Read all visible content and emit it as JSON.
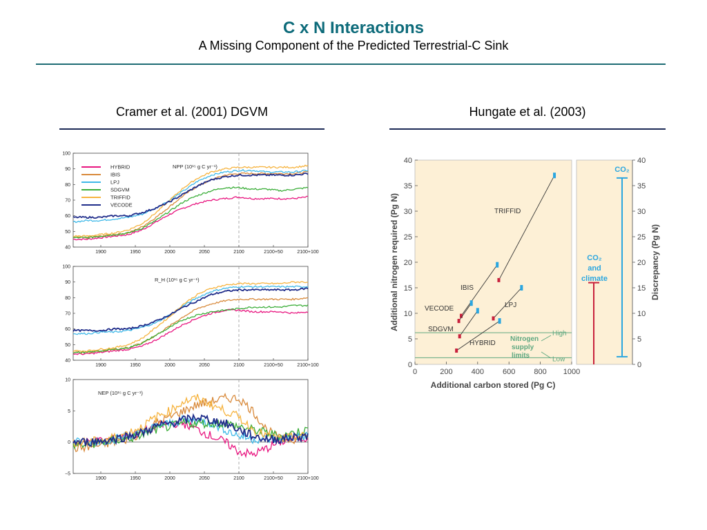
{
  "slide": {
    "title": "C x N Interactions",
    "subtitle": "A Missing Component of the Predicted Terrestrial-C Sink"
  },
  "left": {
    "heading": "Cramer et al. (2001) DGVM"
  },
  "right": {
    "heading": "Hungate et al. (2003)"
  },
  "colors": {
    "HYBRID": "#e8147f",
    "IBIS": "#d8893a",
    "LPJ": "#3db8e8",
    "SDGVM": "#3aad38",
    "TRIFFID": "#f6b33e",
    "VECODE": "#1f2c8a",
    "req_red": "#c8203c",
    "req_blue": "#2aa6e0",
    "nsupply": "#5fa881",
    "panel_bg": "#fdf0d6"
  },
  "chart_data": [
    {
      "type": "line",
      "title": "NPP (10¹⁵ g C yr⁻¹)",
      "ylim": [
        40,
        100
      ],
      "yticks": [
        "40",
        "50",
        "60",
        "70",
        "80",
        "90",
        "100"
      ],
      "xticks": [
        "1900",
        "1950",
        "2000",
        "2050",
        "2100",
        "2100+50",
        "2100+100"
      ],
      "x": [
        1860,
        1880,
        1900,
        1920,
        1940,
        1960,
        1980,
        2000,
        2020,
        2040,
        2060,
        2080,
        2100,
        2120,
        2140,
        2160,
        2180,
        2200
      ],
      "legend_position": "top-left",
      "series": [
        {
          "name": "HYBRID",
          "values": [
            45,
            45,
            46,
            47,
            48,
            51,
            56,
            61,
            65,
            68,
            70,
            71,
            72,
            71,
            71,
            71,
            71,
            72
          ]
        },
        {
          "name": "IBIS",
          "values": [
            46,
            46,
            47,
            48,
            49,
            53,
            59,
            66,
            73,
            79,
            83,
            86,
            87,
            87,
            87,
            87,
            87,
            88
          ]
        },
        {
          "name": "LPJ",
          "values": [
            56,
            57,
            57,
            58,
            59,
            61,
            65,
            70,
            76,
            82,
            86,
            88,
            89,
            89,
            88,
            88,
            88,
            89
          ]
        },
        {
          "name": "SDGVM",
          "values": [
            46,
            46,
            47,
            48,
            49,
            52,
            57,
            63,
            69,
            73,
            76,
            78,
            78,
            77,
            77,
            76,
            77,
            78
          ]
        },
        {
          "name": "TRIFFID",
          "values": [
            47,
            47,
            48,
            49,
            51,
            55,
            62,
            70,
            78,
            84,
            88,
            90,
            91,
            91,
            91,
            91,
            91,
            92
          ]
        },
        {
          "name": "VECODE",
          "values": [
            59,
            59,
            59,
            60,
            60,
            62,
            65,
            69,
            74,
            79,
            83,
            85,
            86,
            86,
            86,
            86,
            86,
            87
          ]
        }
      ]
    },
    {
      "type": "line",
      "title": "R_H (10¹⁵ g C yr⁻¹)",
      "ylim": [
        40,
        100
      ],
      "yticks": [
        "40",
        "50",
        "60",
        "70",
        "80",
        "90",
        "100"
      ],
      "xticks": [
        "1900",
        "1950",
        "2000",
        "2050",
        "2100",
        "2100+50",
        "2100+100"
      ],
      "x": [
        1860,
        1880,
        1900,
        1920,
        1940,
        1960,
        1980,
        2000,
        2020,
        2040,
        2060,
        2080,
        2100,
        2120,
        2140,
        2160,
        2180,
        2200
      ],
      "series": [
        {
          "name": "HYBRID",
          "values": [
            44,
            44,
            45,
            46,
            47,
            49,
            53,
            58,
            63,
            67,
            70,
            72,
            72,
            71,
            71,
            71,
            70,
            71
          ]
        },
        {
          "name": "IBIS",
          "values": [
            45,
            45,
            46,
            47,
            48,
            51,
            56,
            62,
            68,
            73,
            76,
            78,
            79,
            79,
            79,
            79,
            79,
            80
          ]
        },
        {
          "name": "LPJ",
          "values": [
            57,
            57,
            58,
            58,
            59,
            61,
            64,
            69,
            75,
            80,
            84,
            86,
            87,
            87,
            87,
            87,
            87,
            87
          ]
        },
        {
          "name": "SDGVM",
          "values": [
            45,
            45,
            46,
            47,
            48,
            51,
            56,
            61,
            66,
            69,
            71,
            72,
            73,
            74,
            74,
            74,
            75,
            75
          ]
        },
        {
          "name": "TRIFFID",
          "values": [
            46,
            46,
            47,
            48,
            50,
            54,
            61,
            68,
            76,
            82,
            86,
            88,
            89,
            89,
            89,
            89,
            90,
            90
          ]
        },
        {
          "name": "VECODE",
          "values": [
            59,
            59,
            59,
            60,
            60,
            62,
            65,
            69,
            74,
            78,
            82,
            84,
            85,
            85,
            85,
            85,
            85,
            86
          ]
        }
      ]
    },
    {
      "type": "line",
      "title": "NEP (10¹⁵ g C yr⁻¹)",
      "ylim": [
        -5,
        10
      ],
      "yticks": [
        "−5",
        "0",
        "5",
        "10"
      ],
      "xticks": [
        "1900",
        "1950",
        "2000",
        "2050",
        "2100",
        "2100+50",
        "2100+100"
      ],
      "x": [
        1860,
        1880,
        1900,
        1920,
        1940,
        1960,
        1980,
        2000,
        2020,
        2040,
        2060,
        2080,
        2100,
        2120,
        2140,
        2160,
        2180,
        2200
      ],
      "series": [
        {
          "name": "HYBRID",
          "values": [
            0,
            0,
            0.2,
            0.5,
            1,
            1.5,
            2.5,
            3,
            3,
            2,
            1,
            0,
            -1.5,
            -2,
            -1,
            0,
            0.5,
            0.8
          ]
        },
        {
          "name": "IBIS",
          "values": [
            -1,
            -0.8,
            -0.5,
            0,
            0.5,
            1.5,
            3,
            4,
            5,
            6,
            6.5,
            7,
            7,
            5,
            2,
            0.5,
            0.5,
            1
          ]
        },
        {
          "name": "LPJ",
          "values": [
            0,
            0,
            0.2,
            0.5,
            1,
            1.5,
            2.5,
            3,
            3.5,
            3.5,
            3,
            2,
            1,
            0.5,
            0.5,
            0.5,
            0.8,
            1
          ]
        },
        {
          "name": "SDGVM",
          "values": [
            -0.5,
            -0.5,
            0,
            0.3,
            0.5,
            1.2,
            2,
            2.5,
            3,
            3,
            3,
            3,
            2.5,
            2,
            1.5,
            1,
            1.5,
            2
          ]
        },
        {
          "name": "TRIFFID",
          "values": [
            0,
            0,
            0.3,
            0.8,
            1.5,
            2.5,
            4,
            5,
            6.5,
            7,
            6,
            5,
            4,
            2,
            1,
            0.5,
            0.8,
            1
          ]
        },
        {
          "name": "VECODE",
          "values": [
            0,
            0,
            0.2,
            0.5,
            1,
            1.5,
            2.5,
            3,
            3.5,
            4,
            3.5,
            3,
            2,
            1,
            0.5,
            0.5,
            0.8,
            1
          ]
        }
      ]
    },
    {
      "type": "scatter",
      "xlabel": "Additional carbon stored (Pg C)",
      "ylabel": "Additional nitrogen required (Pg N)",
      "xlim": [
        0,
        1000
      ],
      "ylim": [
        0,
        40
      ],
      "xticks": [
        "0",
        "200",
        "400",
        "600",
        "800",
        "1000"
      ],
      "yticks": [
        "0",
        "5",
        "10",
        "15",
        "20",
        "25",
        "30",
        "35",
        "40"
      ],
      "series": [
        {
          "name": "TRIFFID",
          "low": [
            535,
            16.5
          ],
          "high": [
            890,
            37
          ]
        },
        {
          "name": "IBIS",
          "low": [
            295,
            9.5
          ],
          "high": [
            525,
            19.5
          ]
        },
        {
          "name": "LPJ",
          "low": [
            500,
            9
          ],
          "high": [
            680,
            15
          ]
        },
        {
          "name": "VECODE",
          "low": [
            280,
            8.5
          ],
          "high": [
            360,
            12
          ]
        },
        {
          "name": "SDGVM",
          "low": [
            285,
            5.5
          ],
          "high": [
            400,
            10.5
          ]
        },
        {
          "name": "HYBRID",
          "low": [
            265,
            2.7
          ],
          "high": [
            540,
            8.5
          ]
        }
      ],
      "nitrogen_supply_label": "Nitrogen supply limits",
      "high_label": "High",
      "low_label": "Low",
      "supply_high": 6.2,
      "supply_low": 1.3
    },
    {
      "type": "bar",
      "ylabel": "Discrepancy (Pg N)",
      "ylim": [
        0,
        40
      ],
      "yticks": [
        "0",
        "5",
        "10",
        "15",
        "20",
        "25",
        "30",
        "35",
        "40"
      ],
      "bars": [
        {
          "label": "CO₂",
          "low": 1.5,
          "high": 36.5
        },
        {
          "label_lines": [
            "CO₂",
            "and",
            "climate"
          ],
          "low": 0,
          "high": 16
        }
      ]
    }
  ]
}
